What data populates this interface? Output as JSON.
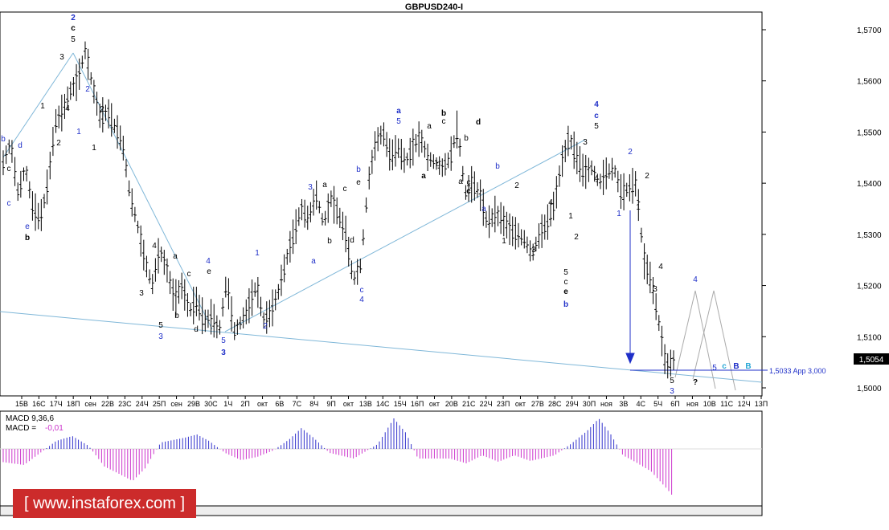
{
  "title": "GBPUSD240-I",
  "macd_label": "MACD 9,36,6",
  "macd_value_label": "MACD =",
  "macd_value": "-0,01",
  "target_label": "1,5033 App 3,000",
  "current_price": "1,5054",
  "watermark": "[ www.instaforex.com ]",
  "colors": {
    "blue": "#1f2fc8",
    "bear": "#cc33cc",
    "bull": "#3333cc",
    "line": "#7fb7d8",
    "grey": "#999999"
  },
  "chart_data": {
    "type": "candlestick",
    "title": "GBPUSD240-I",
    "ylim": [
      1.495,
      1.575
    ],
    "yticks": [
      "1,5700",
      "1,5600",
      "1,5500",
      "1,5400",
      "1,5300",
      "1,5200",
      "1,5100",
      "1,5000"
    ],
    "xticks": [
      "15В",
      "16С",
      "17Ч",
      "18П",
      "сен",
      "22В",
      "23С",
      "24Ч",
      "25П",
      "сен",
      "29В",
      "30С",
      "1Ч",
      "2П",
      "окт",
      "6В",
      "7С",
      "8Ч",
      "9П",
      "окт",
      "13В",
      "14С",
      "15Ч",
      "16П",
      "окт",
      "20В",
      "21С",
      "22Ч",
      "23П",
      "окт",
      "27В",
      "28С",
      "29Ч",
      "30П",
      "ноя",
      "3В",
      "4С",
      "5Ч",
      "6П",
      "ноя",
      "10В",
      "11С",
      "12Ч",
      "13П"
    ],
    "price_path": [
      1.544,
      1.548,
      1.538,
      1.543,
      1.535,
      1.533,
      1.54,
      1.552,
      1.554,
      1.558,
      1.56,
      1.566,
      1.559,
      1.553,
      1.554,
      1.551,
      1.548,
      1.538,
      1.532,
      1.525,
      1.52,
      1.527,
      1.523,
      1.517,
      1.52,
      1.515,
      1.517,
      1.513,
      1.514,
      1.511,
      1.521,
      1.511,
      1.513,
      1.516,
      1.52,
      1.513,
      1.515,
      1.519,
      1.525,
      1.53,
      1.535,
      1.533,
      1.538,
      1.532,
      1.537,
      1.534,
      1.53,
      1.521,
      1.524,
      1.54,
      1.548,
      1.55,
      1.545,
      1.547,
      1.544,
      1.547,
      1.549,
      1.545,
      1.544,
      1.543,
      1.545,
      1.551,
      1.538,
      1.54,
      1.538,
      1.532,
      1.534,
      1.533,
      1.531,
      1.53,
      1.529,
      1.526,
      1.53,
      1.532,
      1.536,
      1.544,
      1.549,
      1.545,
      1.542,
      1.543,
      1.54,
      1.542,
      1.543,
      1.538,
      1.539,
      1.54,
      1.525,
      1.521,
      1.513,
      1.504,
      1.5054
    ],
    "target_level": 1.5033,
    "wave_labels": [
      {
        "t": "2",
        "x": 91,
        "y": 25,
        "c": "blue",
        "b": true
      },
      {
        "t": "c",
        "x": 91,
        "y": 38,
        "c": "black",
        "b": true
      },
      {
        "t": "5",
        "x": 91,
        "y": 52,
        "c": "black"
      },
      {
        "t": "3",
        "x": 77,
        "y": 74,
        "c": "black"
      },
      {
        "t": "1",
        "x": 53,
        "y": 135,
        "c": "black"
      },
      {
        "t": "4",
        "x": 84,
        "y": 138,
        "c": "black"
      },
      {
        "t": "2",
        "x": 109,
        "y": 114,
        "c": "blue"
      },
      {
        "t": "2",
        "x": 127,
        "y": 139,
        "c": "black"
      },
      {
        "t": "1",
        "x": 98,
        "y": 167,
        "c": "blue"
      },
      {
        "t": "2",
        "x": 73,
        "y": 181,
        "c": "black"
      },
      {
        "t": "1",
        "x": 117,
        "y": 187,
        "c": "black"
      },
      {
        "t": "b",
        "x": 4,
        "y": 176,
        "c": "blue"
      },
      {
        "t": "c",
        "x": 11,
        "y": 213,
        "c": "black"
      },
      {
        "t": "d",
        "x": 25,
        "y": 184,
        "c": "blue"
      },
      {
        "t": "c",
        "x": 11,
        "y": 256,
        "c": "blue"
      },
      {
        "t": "e",
        "x": 34,
        "y": 285,
        "c": "blue"
      },
      {
        "t": "b",
        "x": 34,
        "y": 299,
        "c": "black",
        "b": true
      },
      {
        "t": "4",
        "x": 192,
        "y": 309,
        "c": "black"
      },
      {
        "t": "a",
        "x": 218,
        "y": 322,
        "c": "black"
      },
      {
        "t": "c",
        "x": 235,
        "y": 344,
        "c": "black"
      },
      {
        "t": "3",
        "x": 176,
        "y": 368,
        "c": "black"
      },
      {
        "t": "b",
        "x": 220,
        "y": 396,
        "c": "black"
      },
      {
        "t": "5",
        "x": 200,
        "y": 408,
        "c": "black"
      },
      {
        "t": "3",
        "x": 200,
        "y": 422,
        "c": "blue"
      },
      {
        "t": "d",
        "x": 244,
        "y": 413,
        "c": "black"
      },
      {
        "t": "4",
        "x": 259,
        "y": 328,
        "c": "blue"
      },
      {
        "t": "e",
        "x": 260,
        "y": 341,
        "c": "black"
      },
      {
        "t": "5",
        "x": 278,
        "y": 427,
        "c": "blue"
      },
      {
        "t": "3",
        "x": 278,
        "y": 442,
        "c": "blue",
        "b": true
      },
      {
        "t": "1",
        "x": 320,
        "y": 318,
        "c": "blue"
      },
      {
        "t": "2",
        "x": 330,
        "y": 409,
        "c": "blue"
      },
      {
        "t": "3",
        "x": 386,
        "y": 236,
        "c": "blue"
      },
      {
        "t": "a",
        "x": 404,
        "y": 233,
        "c": "black"
      },
      {
        "t": "b",
        "x": 410,
        "y": 303,
        "c": "black"
      },
      {
        "t": "a",
        "x": 390,
        "y": 328,
        "c": "blue"
      },
      {
        "t": "c",
        "x": 429,
        "y": 238,
        "c": "black"
      },
      {
        "t": "d",
        "x": 438,
        "y": 302,
        "c": "black"
      },
      {
        "t": "b",
        "x": 446,
        "y": 214,
        "c": "blue"
      },
      {
        "t": "e",
        "x": 446,
        "y": 230,
        "c": "black"
      },
      {
        "t": "c",
        "x": 450,
        "y": 364,
        "c": "blue"
      },
      {
        "t": "4",
        "x": 450,
        "y": 376,
        "c": "blue"
      },
      {
        "t": "a",
        "x": 496,
        "y": 141,
        "c": "blue",
        "b": true
      },
      {
        "t": "5",
        "x": 496,
        "y": 154,
        "c": "blue"
      },
      {
        "t": "a",
        "x": 534,
        "y": 160,
        "c": "black"
      },
      {
        "t": "a",
        "x": 527,
        "y": 222,
        "c": "black",
        "b": true
      },
      {
        "t": "b",
        "x": 552,
        "y": 144,
        "c": "black",
        "b": true
      },
      {
        "t": "c",
        "x": 552,
        "y": 154,
        "c": "black"
      },
      {
        "t": "b",
        "x": 545,
        "y": 207,
        "c": "black"
      },
      {
        "t": "b",
        "x": 580,
        "y": 175,
        "c": "black"
      },
      {
        "t": "a",
        "x": 573,
        "y": 229,
        "c": "black"
      },
      {
        "t": "c",
        "x": 583,
        "y": 230,
        "c": "black"
      },
      {
        "t": "c",
        "x": 583,
        "y": 241,
        "c": "black",
        "b": true
      },
      {
        "t": "d",
        "x": 595,
        "y": 155,
        "c": "black",
        "b": true
      },
      {
        "t": "b",
        "x": 619,
        "y": 210,
        "c": "blue"
      },
      {
        "t": "a",
        "x": 602,
        "y": 263,
        "c": "blue"
      },
      {
        "t": "2",
        "x": 643,
        "y": 234,
        "c": "black"
      },
      {
        "t": "1",
        "x": 627,
        "y": 303,
        "c": "black"
      },
      {
        "t": "4",
        "x": 685,
        "y": 255,
        "c": "black"
      },
      {
        "t": "3",
        "x": 664,
        "y": 314,
        "c": "black"
      },
      {
        "t": "1",
        "x": 710,
        "y": 272,
        "c": "black"
      },
      {
        "t": "2",
        "x": 717,
        "y": 298,
        "c": "black"
      },
      {
        "t": "5",
        "x": 704,
        "y": 342,
        "c": "black"
      },
      {
        "t": "c",
        "x": 704,
        "y": 354,
        "c": "black"
      },
      {
        "t": "e",
        "x": 704,
        "y": 366,
        "c": "black",
        "b": true
      },
      {
        "t": "b",
        "x": 704,
        "y": 382,
        "c": "blue",
        "b": true
      },
      {
        "t": "4",
        "x": 742,
        "y": 133,
        "c": "blue",
        "b": true
      },
      {
        "t": "c",
        "x": 742,
        "y": 147,
        "c": "blue",
        "b": true
      },
      {
        "t": "5",
        "x": 742,
        "y": 160,
        "c": "black"
      },
      {
        "t": "3",
        "x": 728,
        "y": 180,
        "c": "black"
      },
      {
        "t": "4",
        "x": 742,
        "y": 225,
        "c": "black"
      },
      {
        "t": "2",
        "x": 784,
        "y": 192,
        "c": "blue"
      },
      {
        "t": "1",
        "x": 770,
        "y": 269,
        "c": "blue"
      },
      {
        "t": "2",
        "x": 805,
        "y": 222,
        "c": "black"
      },
      {
        "t": "1",
        "x": 794,
        "y": 261,
        "c": "black"
      },
      {
        "t": "4",
        "x": 822,
        "y": 335,
        "c": "black"
      },
      {
        "t": "3",
        "x": 815,
        "y": 363,
        "c": "black"
      },
      {
        "t": "5",
        "x": 836,
        "y": 477,
        "c": "black"
      },
      {
        "t": "3",
        "x": 836,
        "y": 490,
        "c": "blue"
      },
      {
        "t": "4",
        "x": 865,
        "y": 351,
        "c": "blue"
      },
      {
        "t": "?",
        "x": 865,
        "y": 479,
        "c": "black",
        "b": true
      },
      {
        "t": "5",
        "x": 889,
        "y": 461,
        "c": "blue"
      },
      {
        "t": "c",
        "x": 901,
        "y": 459,
        "c": "#29a8d6",
        "b": true
      },
      {
        "t": "B",
        "x": 916,
        "y": 459,
        "c": "blue",
        "b": true
      },
      {
        "t": "B",
        "x": 931,
        "y": 459,
        "c": "#29a8d6",
        "b": true
      }
    ],
    "macd_series_note": "histogram oscillating around zero, deep negative at end"
  }
}
